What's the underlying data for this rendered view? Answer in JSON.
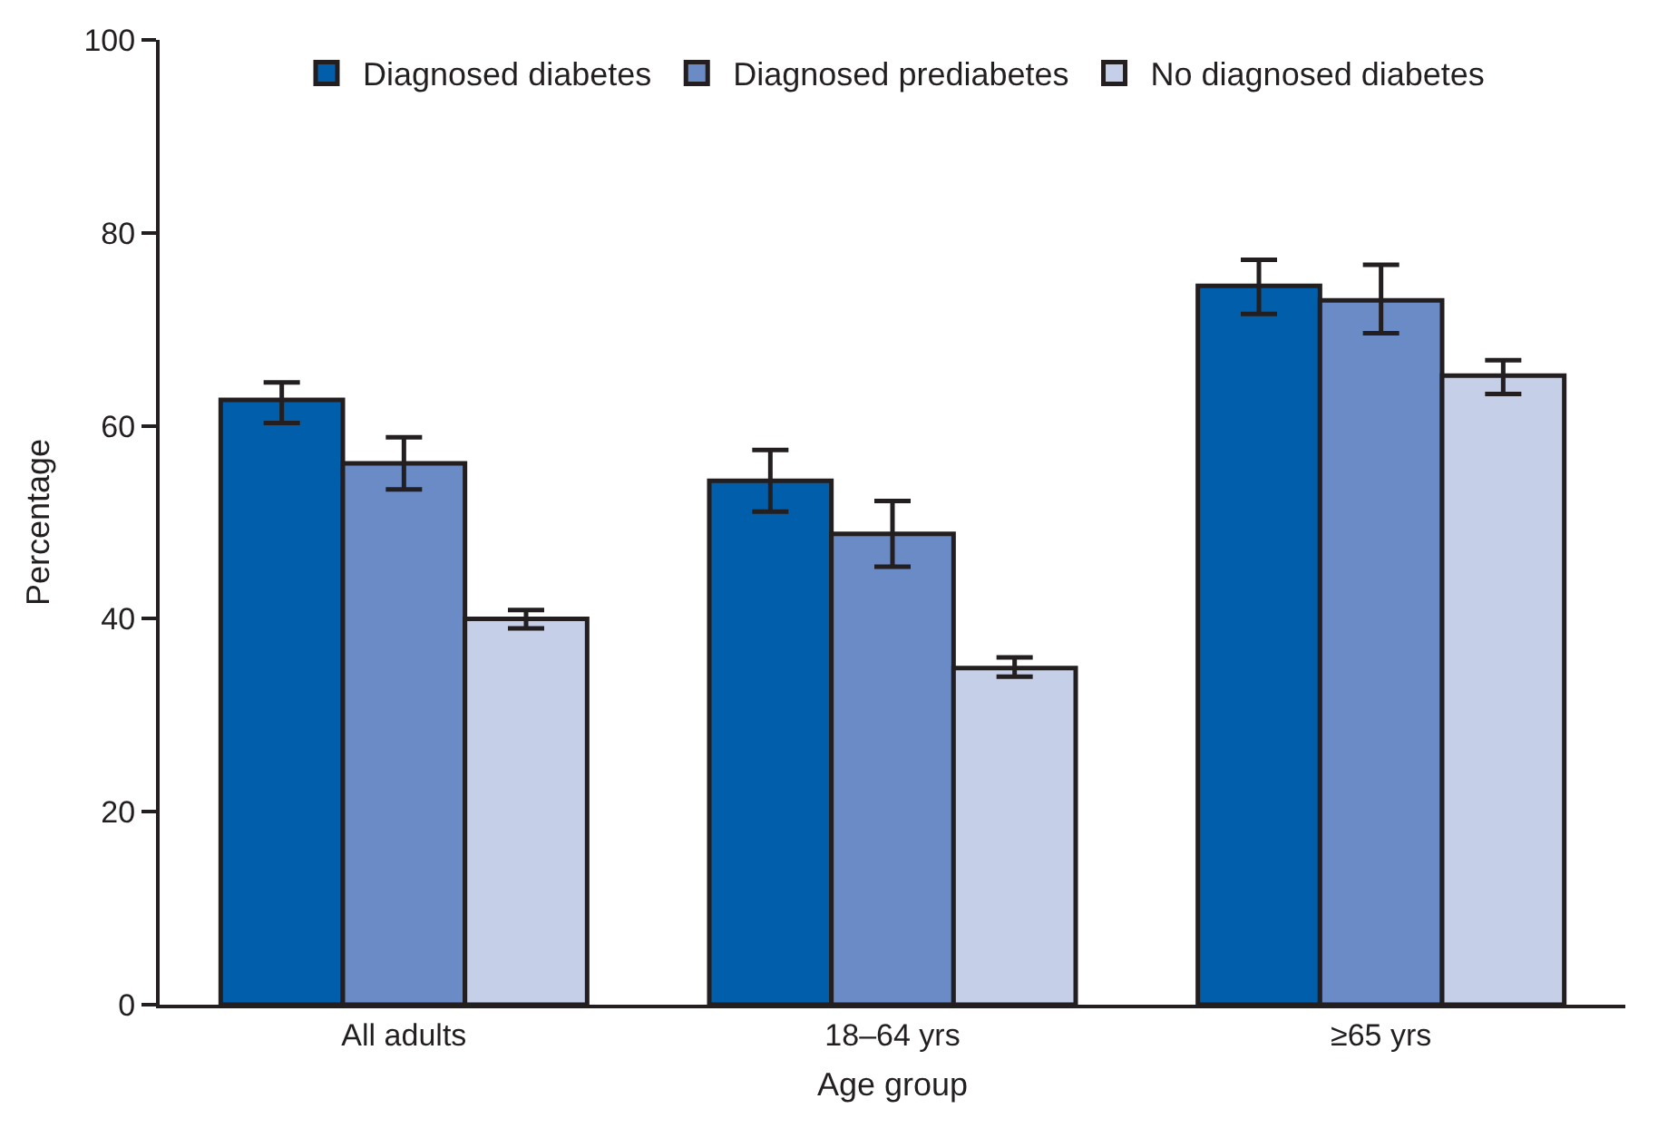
{
  "chart_data": {
    "type": "bar",
    "xlabel": "Age group",
    "ylabel": "Percentage",
    "categories": [
      "All adults",
      "18–64 yrs",
      "≥65 yrs"
    ],
    "series": [
      {
        "name": "Diagnosed diabetes",
        "color": "#005eaa",
        "values": [
          62.7,
          54.3,
          74.5
        ],
        "errors": [
          [
            60.3,
            64.5
          ],
          [
            51.1,
            57.5
          ],
          [
            71.6,
            77.2
          ]
        ]
      },
      {
        "name": "Diagnosed prediabetes",
        "color": "#6b8bc6",
        "values": [
          56.1,
          48.8,
          73.0
        ],
        "errors": [
          [
            53.4,
            58.8
          ],
          [
            45.4,
            52.2
          ],
          [
            69.6,
            76.7
          ]
        ]
      },
      {
        "name": "No diagnosed diabetes",
        "color": "#c5cfe8",
        "values": [
          40.0,
          34.9,
          65.2
        ],
        "errors": [
          [
            39.0,
            40.9
          ],
          [
            34.0,
            36.0
          ],
          [
            63.3,
            66.8
          ]
        ]
      }
    ],
    "ylim": [
      0,
      100
    ],
    "yticks": [
      0,
      20,
      40,
      60,
      80,
      100
    ],
    "grid": false,
    "legend": "top"
  }
}
